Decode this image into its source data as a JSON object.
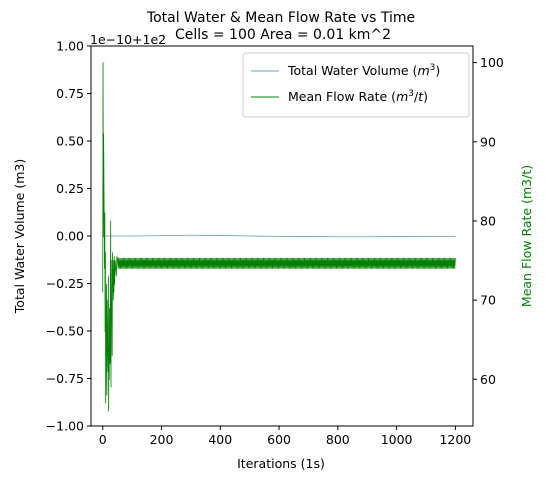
{
  "chart_data": {
    "type": "line",
    "title": "Total Water & Mean Flow Rate vs Time",
    "subtitle": "Cells = 100 Area = 0.01 km^2",
    "xlabel": "Iterations (1s)",
    "ylabel_left": "Total Water Volume (m3)",
    "ylabel_right": "Mean Flow Rate (m3/t)",
    "left_offset_text": "1e−10+1e2",
    "xlim": [
      -40,
      1260
    ],
    "ylim_left": [
      -1.0,
      1.0
    ],
    "ylim_right": [
      54.1,
      102.1
    ],
    "x_ticks": [
      0,
      200,
      400,
      600,
      800,
      1000,
      1200
    ],
    "y_ticks_left": [
      -1.0,
      -0.75,
      -0.5,
      -0.25,
      0.0,
      0.25,
      0.5,
      0.75,
      1.0
    ],
    "y_ticks_left_labels": [
      "−1.00",
      "−0.75",
      "−0.50",
      "−0.25",
      "0.00",
      "0.25",
      "0.50",
      "0.75",
      "1.00"
    ],
    "y_ticks_right": [
      60,
      70,
      80,
      90,
      100
    ],
    "legend_position": "upper-right",
    "colors": {
      "total_water": "#5f9ebf",
      "mean_flow": "#008000",
      "right_axis_label": "#008000"
    },
    "series": [
      {
        "name": "Total Water Volume (m3)",
        "axis": "left",
        "color": "#5f9ebf",
        "x": [
          0,
          100,
          200,
          300,
          400,
          500,
          600,
          700,
          800,
          900,
          1000,
          1100,
          1200
        ],
        "y": [
          0.0,
          0.0,
          0.002,
          0.004,
          0.003,
          0.0,
          -0.002,
          -0.003,
          -0.004,
          -0.004,
          -0.003,
          -0.002,
          -0.002
        ]
      },
      {
        "name": "Mean Flow Rate (m3/t)",
        "axis": "right",
        "color": "#008000",
        "x": [
          0,
          1,
          2,
          3,
          4,
          5,
          6,
          7,
          8,
          9,
          10,
          11,
          12,
          13,
          14,
          15,
          16,
          17,
          18,
          19,
          20,
          21,
          22,
          23,
          24,
          25,
          26,
          27,
          28,
          29,
          30,
          31,
          32,
          33,
          34,
          35,
          36,
          37,
          38,
          39,
          40,
          42,
          44,
          46,
          48,
          50,
          55,
          60,
          70,
          80,
          100,
          150,
          200,
          300,
          400,
          500,
          600,
          700,
          800,
          900,
          1000,
          1100,
          1200
        ],
        "y": [
          71,
          100,
          78,
          91,
          85,
          80,
          74,
          81,
          66,
          76,
          57,
          62,
          65,
          72,
          58,
          70,
          63,
          67,
          61,
          73,
          56,
          64,
          60,
          69,
          66,
          62,
          72,
          80,
          59,
          75,
          68,
          70,
          63,
          76,
          72,
          74,
          70,
          75,
          71,
          75.5,
          72,
          75,
          74,
          73,
          75.5,
          74,
          75,
          74.5,
          75,
          74.5,
          75,
          74.6,
          74.7,
          74.6,
          74.6,
          74.7,
          74.6,
          74.6,
          74.6,
          74.7,
          74.6,
          74.6,
          74.6
        ],
        "band": {
          "x_start": 50,
          "x_end": 1200,
          "min": 74.0,
          "max": 75.3
        }
      }
    ]
  }
}
